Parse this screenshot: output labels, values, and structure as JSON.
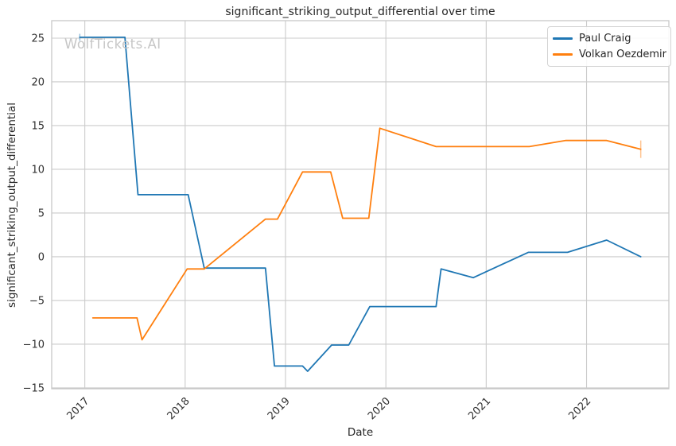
{
  "chart_data": {
    "type": "line",
    "title": "significant_striking_output_differential over time",
    "xlabel": "Date",
    "ylabel": "significant_striking_output_differential",
    "watermark": "WolfTickets.AI",
    "grid": true,
    "legend_position": "upper right",
    "xlim": [
      2016.67,
      2022.82
    ],
    "ylim": [
      -15.1,
      27.0
    ],
    "x_ticks": [
      2017,
      2018,
      2019,
      2020,
      2021,
      2022
    ],
    "y_ticks": [
      -15,
      -10,
      -5,
      0,
      5,
      10,
      15,
      20,
      25
    ],
    "colors": {
      "grid": "#cbcbcb",
      "spine": "#c8c8c8",
      "tick_text": "#303030",
      "title_text": "#262626"
    },
    "series": [
      {
        "name": "Paul Craig",
        "color": "#1f77b4",
        "points": [
          [
            2016.95,
            25.1
          ],
          [
            2017.4,
            25.1
          ],
          [
            2017.53,
            7.1
          ],
          [
            2018.03,
            7.1
          ],
          [
            2018.19,
            -1.3
          ],
          [
            2018.8,
            -1.3
          ],
          [
            2018.89,
            -12.5
          ],
          [
            2019.17,
            -12.5
          ],
          [
            2019.22,
            -13.1
          ],
          [
            2019.46,
            -10.1
          ],
          [
            2019.63,
            -10.1
          ],
          [
            2019.84,
            -5.7
          ],
          [
            2020.5,
            -5.7
          ],
          [
            2020.55,
            -1.4
          ],
          [
            2020.87,
            -2.4
          ],
          [
            2021.42,
            0.5
          ],
          [
            2021.81,
            0.5
          ],
          [
            2022.2,
            1.9
          ],
          [
            2022.54,
            0.0
          ]
        ]
      },
      {
        "name": "Volkan Oezdemir",
        "color": "#ff7f0e",
        "points": [
          [
            2017.08,
            -7.0
          ],
          [
            2017.52,
            -7.0
          ],
          [
            2017.57,
            -9.5
          ],
          [
            2018.02,
            -1.4
          ],
          [
            2018.19,
            -1.4
          ],
          [
            2018.8,
            4.3
          ],
          [
            2018.92,
            4.3
          ],
          [
            2019.17,
            9.7
          ],
          [
            2019.45,
            9.7
          ],
          [
            2019.57,
            4.4
          ],
          [
            2019.83,
            4.4
          ],
          [
            2019.94,
            14.7
          ],
          [
            2020.5,
            12.6
          ],
          [
            2021.43,
            12.6
          ],
          [
            2021.79,
            13.3
          ],
          [
            2022.2,
            13.3
          ],
          [
            2022.54,
            12.3
          ]
        ]
      }
    ],
    "error_ticks": [
      {
        "series": "Paul Craig",
        "x": 2016.95,
        "y": 25.1,
        "half": 0.4
      },
      {
        "series": "Volkan Oezdemir",
        "x": 2022.54,
        "y": 12.3,
        "half": 1.0
      }
    ]
  }
}
